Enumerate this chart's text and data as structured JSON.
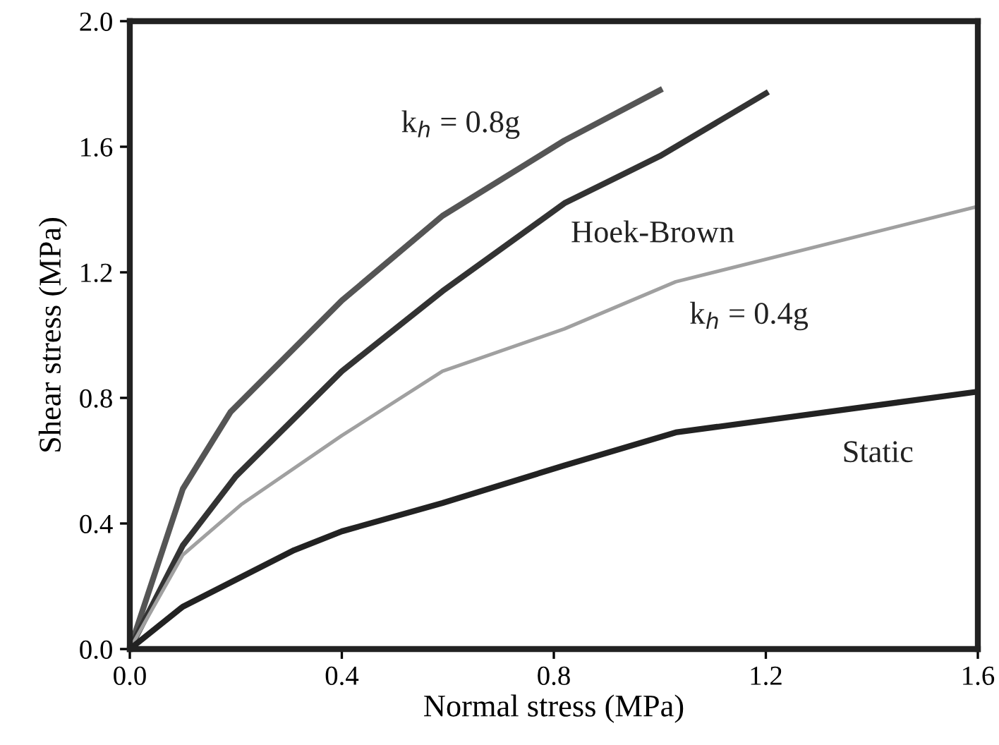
{
  "chart_data": {
    "type": "line",
    "xlabel": "Normal stress (MPa)",
    "ylabel": "Shear stress (MPa)",
    "xlim": [
      0,
      1.6
    ],
    "ylim": [
      0,
      2.0
    ],
    "xticks": [
      {
        "value": 0,
        "label": "0.0"
      },
      0.4,
      0.8,
      1.2,
      1.6
    ],
    "yticks": [
      {
        "value": 0,
        "label": "0.0"
      },
      0.4,
      0.8,
      1.2,
      1.6,
      {
        "value": 2.0,
        "label": "2.0"
      }
    ],
    "grid": false,
    "legend": false,
    "marker": "none",
    "line_style": "solid",
    "series": [
      {
        "name": "k$_{h}$ = 0.8g",
        "color": "#555555",
        "x": [
          0,
          0.1,
          0.19,
          0.4,
          0.59,
          0.82,
          1.0
        ],
        "values": [
          0,
          0.51,
          0.755,
          1.11,
          1.38,
          1.62,
          1.78
        ]
      },
      {
        "name": "Hoek-Brown",
        "color": "#333333",
        "x": [
          0,
          0.1,
          0.2,
          0.4,
          0.59,
          0.82,
          1.0,
          1.2
        ],
        "values": [
          0,
          0.33,
          0.55,
          0.885,
          1.14,
          1.42,
          1.57,
          1.77
        ]
      },
      {
        "name": "k$_{h}$ = 0.4g",
        "color": "#a0a0a0",
        "x": [
          0,
          0.1,
          0.21,
          0.4,
          0.59,
          0.82,
          1.03,
          1.6
        ],
        "values": [
          0,
          0.3,
          0.46,
          0.68,
          0.885,
          1.02,
          1.17,
          1.41
        ]
      },
      {
        "name": "Static",
        "color": "#222222",
        "x": [
          0,
          0.1,
          0.31,
          0.4,
          0.59,
          0.82,
          1.03,
          1.6
        ],
        "values": [
          0,
          0.135,
          0.315,
          0.375,
          0.465,
          0.585,
          0.69,
          0.82
        ]
      }
    ]
  }
}
